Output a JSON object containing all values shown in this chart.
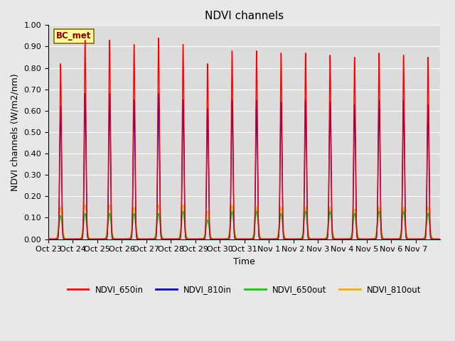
{
  "title": "NDVI channels",
  "xlabel": "Time",
  "ylabel": "NDVI channels (W/m2/nm)",
  "ylim": [
    0.0,
    1.0
  ],
  "annotation": "BC_met",
  "tick_labels": [
    "Oct 23",
    "Oct 24",
    "Oct 25",
    "Oct 26",
    "Oct 27",
    "Oct 28",
    "Oct 29",
    "Oct 30",
    "Oct 31",
    "Nov 1",
    "Nov 2",
    "Nov 3",
    "Nov 4",
    "Nov 5",
    "Nov 6",
    "Nov 7"
  ],
  "series": {
    "NDVI_650in": {
      "color": "#ff0000",
      "linewidth": 1.0
    },
    "NDVI_810in": {
      "color": "#0000cc",
      "linewidth": 1.0
    },
    "NDVI_650out": {
      "color": "#00cc00",
      "linewidth": 1.0
    },
    "NDVI_810out": {
      "color": "#ffaa00",
      "linewidth": 1.0
    }
  },
  "peak_650in": [
    0.82,
    0.93,
    0.93,
    0.91,
    0.94,
    0.91,
    0.82,
    0.88,
    0.88,
    0.87,
    0.87,
    0.86,
    0.85,
    0.87,
    0.86,
    0.85
  ],
  "peak_810in": [
    0.62,
    0.68,
    0.68,
    0.65,
    0.68,
    0.65,
    0.61,
    0.65,
    0.65,
    0.64,
    0.65,
    0.64,
    0.63,
    0.65,
    0.65,
    0.63
  ],
  "peak_650out": [
    0.11,
    0.12,
    0.12,
    0.12,
    0.12,
    0.13,
    0.09,
    0.13,
    0.13,
    0.12,
    0.13,
    0.13,
    0.12,
    0.13,
    0.13,
    0.12
  ],
  "peak_810out": [
    0.15,
    0.16,
    0.16,
    0.15,
    0.16,
    0.16,
    0.13,
    0.16,
    0.15,
    0.15,
    0.15,
    0.15,
    0.14,
    0.15,
    0.15,
    0.15
  ],
  "background_color": "#e8e8e8",
  "plot_bg_color": "#dcdcdc",
  "title_fontsize": 11,
  "label_fontsize": 9,
  "tick_fontsize": 8
}
